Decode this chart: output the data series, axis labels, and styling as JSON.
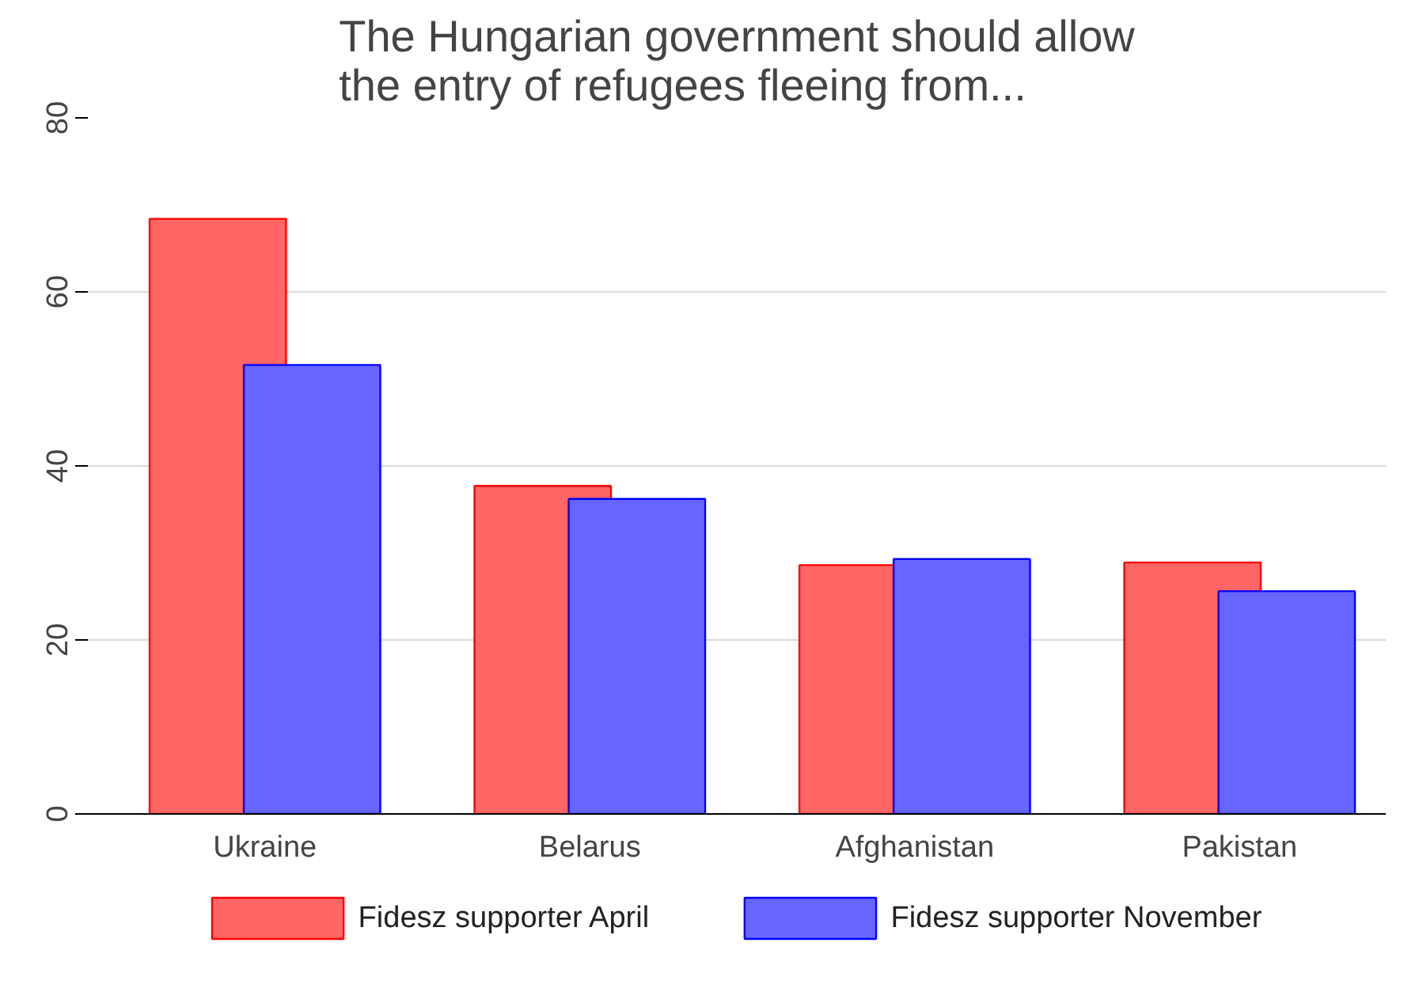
{
  "chart_data": {
    "type": "bar",
    "title": "The Hungarian government should allow\nthe entry of refugees fleeing from...",
    "categories": [
      "Ukraine",
      "Belarus",
      "Afghanistan",
      "Pakistan"
    ],
    "series": [
      {
        "name": "Fidesz supporter April",
        "color": "#ff6666",
        "values": [
          68.4,
          37.7,
          28.6,
          28.9
        ]
      },
      {
        "name": "Fidesz supporter November",
        "color": "#6666ff",
        "values": [
          51.6,
          36.2,
          29.3,
          25.6
        ]
      }
    ],
    "ylim": [
      0,
      80
    ],
    "yticks": [
      0,
      20,
      40,
      60,
      80
    ],
    "grid": "y",
    "legend": "bottom"
  }
}
